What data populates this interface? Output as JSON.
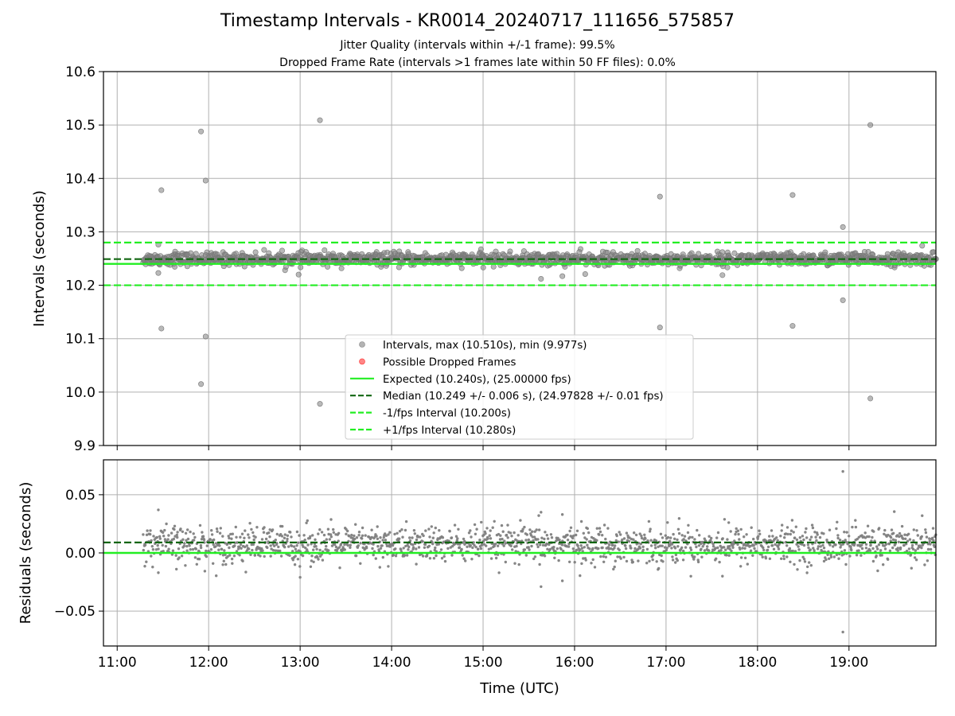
{
  "figure": {
    "title": "Timestamp Intervals - KR0014_20240717_111656_575857",
    "subtitle_lines": [
      "Jitter Quality (intervals within +/-1 frame): 99.5%",
      "Dropped Frame Rate (intervals >1 frames late within 50 FF files): 0.0%"
    ]
  },
  "colors": {
    "points": "#808080",
    "dropped": "#ff3333",
    "expected": "#22ee22",
    "median": "#116611",
    "bounds": "#22ee22",
    "grid": "#b0b0b0"
  },
  "chart_data": [
    {
      "type": "scatter",
      "panel": "intervals",
      "ylabel": "Intervals (seconds)",
      "ylim": [
        9.9,
        10.6
      ],
      "yticks": [
        "9.9",
        "10.0",
        "10.1",
        "10.2",
        "10.3",
        "10.4",
        "10.5",
        "10.6"
      ],
      "xlim_hours": [
        10.85,
        19.95
      ],
      "xticks": [
        "11:00",
        "12:00",
        "13:00",
        "14:00",
        "15:00",
        "16:00",
        "17:00",
        "18:00",
        "19:00"
      ],
      "grid": true,
      "legend_position": "lower center",
      "legend": [
        "Intervals, max (10.510s), min (9.977s)",
        "Possible Dropped Frames",
        "Expected (10.240s), (25.00000 fps)",
        "Median (10.249 +/- 0.006 s), (24.97828 +/- 0.01 fps)",
        "-1/fps Interval (10.200s)",
        "+1/fps Interval (10.280s)"
      ],
      "reference_lines": {
        "expected": 10.24,
        "median": 10.249,
        "minus_one_fps": 10.2,
        "plus_one_fps": 10.28
      },
      "dense_band": {
        "x_range": [
          "11:17",
          "19:57"
        ],
        "center": 10.249,
        "spread": 0.006
      },
      "outliers": [
        {
          "x": "11:27",
          "y": 10.276
        },
        {
          "x": "11:27",
          "y": 10.223
        },
        {
          "x": "11:29",
          "y": 10.378
        },
        {
          "x": "11:29",
          "y": 10.119
        },
        {
          "x": "11:38",
          "y": 10.263
        },
        {
          "x": "11:55",
          "y": 10.488
        },
        {
          "x": "11:55",
          "y": 10.015
        },
        {
          "x": "11:58",
          "y": 10.396
        },
        {
          "x": "11:58",
          "y": 10.104
        },
        {
          "x": "12:59",
          "y": 10.22
        },
        {
          "x": "13:13",
          "y": 10.509
        },
        {
          "x": "13:13",
          "y": 9.978
        },
        {
          "x": "15:38",
          "y": 10.212
        },
        {
          "x": "15:52",
          "y": 10.217
        },
        {
          "x": "16:07",
          "y": 10.221
        },
        {
          "x": "16:56",
          "y": 10.366
        },
        {
          "x": "16:56",
          "y": 10.121
        },
        {
          "x": "17:37",
          "y": 10.219
        },
        {
          "x": "18:23",
          "y": 10.369
        },
        {
          "x": "18:23",
          "y": 10.124
        },
        {
          "x": "18:56",
          "y": 10.309
        },
        {
          "x": "18:56",
          "y": 10.172
        },
        {
          "x": "19:14",
          "y": 10.5
        },
        {
          "x": "19:14",
          "y": 9.988
        },
        {
          "x": "19:48",
          "y": 10.274
        }
      ]
    },
    {
      "type": "scatter",
      "panel": "residuals",
      "ylabel": "Residuals (seconds)",
      "xlabel": "Time (UTC)",
      "ylim": [
        -0.08,
        0.08
      ],
      "yticks": [
        "−0.05",
        "0.00",
        "0.05"
      ],
      "xlim_hours": [
        10.85,
        19.95
      ],
      "xticks": [
        "11:00",
        "12:00",
        "13:00",
        "14:00",
        "15:00",
        "16:00",
        "17:00",
        "18:00",
        "19:00"
      ],
      "grid": true,
      "reference_lines": {
        "zero": 0.0,
        "median_offset": 0.009
      },
      "dense_band": {
        "x_range": [
          "11:17",
          "19:57"
        ],
        "center": 0.007,
        "spread": 0.008
      },
      "outliers": [
        {
          "x": "11:27",
          "y": 0.037
        },
        {
          "x": "11:27",
          "y": -0.017
        },
        {
          "x": "13:00",
          "y": -0.021
        },
        {
          "x": "15:38",
          "y": -0.029
        },
        {
          "x": "15:38",
          "y": 0.035
        },
        {
          "x": "15:52",
          "y": -0.024
        },
        {
          "x": "15:52",
          "y": 0.033
        },
        {
          "x": "17:37",
          "y": -0.02
        },
        {
          "x": "18:56",
          "y": 0.07
        },
        {
          "x": "18:56",
          "y": -0.068
        },
        {
          "x": "19:48",
          "y": 0.032
        }
      ]
    }
  ]
}
